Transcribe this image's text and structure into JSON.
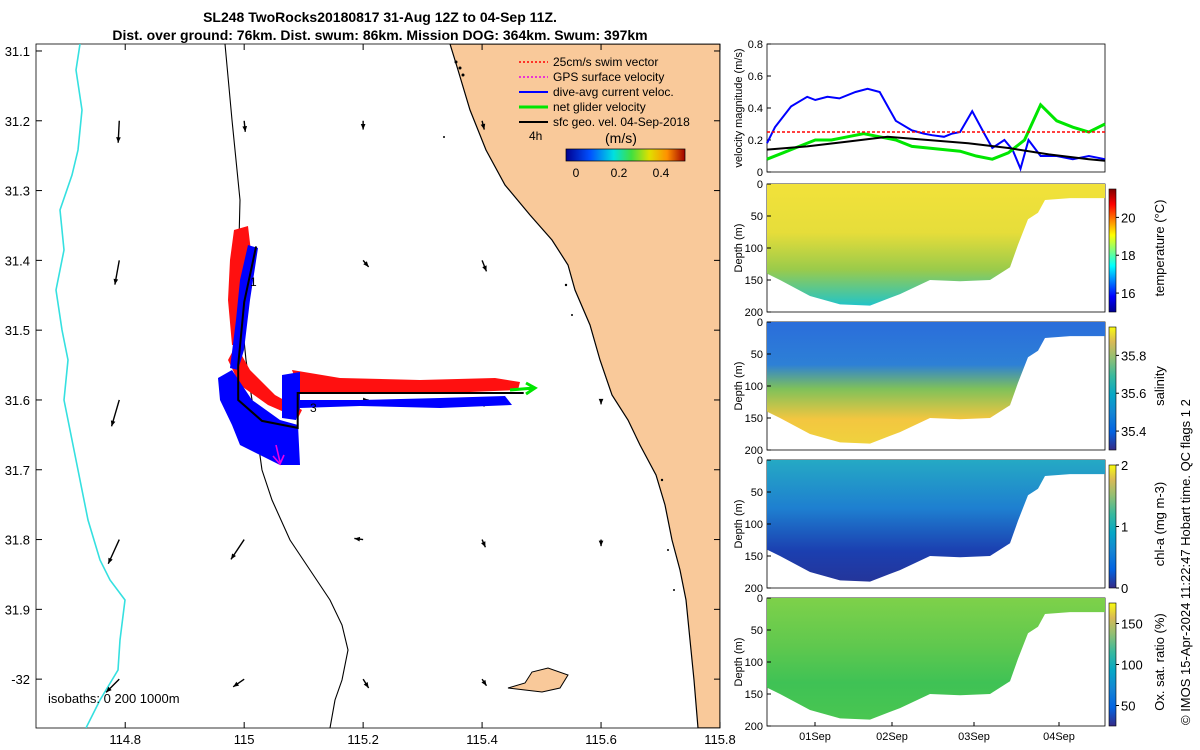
{
  "title": "SL248 TwoRocks20180817 31-Aug 12Z to 04-Sep 11Z.",
  "subtitle": "Dist. over ground: 76km. Dist. swum: 86km. Mission DOG: 364km. Swum: 397km",
  "credit": "© IMOS 15-Apr-2024 11:22:47 Hobart time. QC flags 1  2",
  "colors": {
    "land": "#F9C99A",
    "swim": "#FF0000",
    "gps": "#E800E8",
    "current": "#0000FF",
    "net": "#00E600",
    "geo": "#000000",
    "isobath200": "#000000",
    "isobath1000": "#35E0E0"
  },
  "chart_data": [
    {
      "id": "map",
      "type": "map",
      "x_ticks": [
        "114.8",
        "115",
        "115.2",
        "115.4",
        "115.6",
        "115.8"
      ],
      "y_ticks": [
        "31.1",
        "31.2",
        "31.3",
        "31.4",
        "31.5",
        "31.6",
        "31.7",
        "31.8",
        "31.9",
        "-32"
      ],
      "xlim": [
        114.65,
        115.8
      ],
      "ylim": [
        -31.09,
        -32.07
      ],
      "legend": [
        {
          "label": "25cm/s swim vector",
          "color": "swim",
          "style": "dotted"
        },
        {
          "label": "GPS surface velocity",
          "color": "gps",
          "style": "dotted"
        },
        {
          "label": "dive-avg current veloc.",
          "color": "current",
          "style": "solid"
        },
        {
          "label": "net glider velocity",
          "color": "net",
          "style": "solid"
        },
        {
          "label": "sfc geo. vel. 04-Sep-2018",
          "color": "geo",
          "style": "solid"
        }
      ],
      "time_marker_label": "4h",
      "colorbar": {
        "label": "(m/s)",
        "ticks": [
          "0",
          "0.2",
          "0.4"
        ],
        "range": [
          0,
          0.5
        ]
      },
      "track_markers": [
        {
          "label": "1",
          "lon": 115.03,
          "lat": -31.44
        },
        {
          "label": "3",
          "lon": 115.11,
          "lat": -31.62
        }
      ],
      "glider_track": [
        {
          "lon": 115.02,
          "lat": -31.38
        },
        {
          "lon": 115.0,
          "lat": -31.46
        },
        {
          "lon": 114.99,
          "lat": -31.55
        },
        {
          "lon": 114.99,
          "lat": -31.6
        },
        {
          "lon": 115.03,
          "lat": -31.63
        },
        {
          "lon": 115.09,
          "lat": -31.64
        },
        {
          "lon": 115.09,
          "lat": -31.59
        },
        {
          "lon": 115.2,
          "lat": -31.59
        },
        {
          "lon": 115.47,
          "lat": -31.59
        }
      ],
      "geo_vectors": [
        {
          "lon": 114.79,
          "lat": -31.2,
          "u": -0.01,
          "v": -0.2
        },
        {
          "lon": 115.0,
          "lat": -31.2,
          "u": 0.01,
          "v": -0.1
        },
        {
          "lon": 115.2,
          "lat": -31.2,
          "u": 0.0,
          "v": -0.08
        },
        {
          "lon": 115.4,
          "lat": -31.2,
          "u": 0.02,
          "v": -0.08
        },
        {
          "lon": 114.79,
          "lat": -31.4,
          "u": -0.04,
          "v": -0.22
        },
        {
          "lon": 115.2,
          "lat": -31.4,
          "u": 0.05,
          "v": -0.06
        },
        {
          "lon": 115.4,
          "lat": -31.4,
          "u": 0.04,
          "v": -0.1
        },
        {
          "lon": 114.79,
          "lat": -31.6,
          "u": -0.07,
          "v": -0.24
        },
        {
          "lon": 115.2,
          "lat": -31.6,
          "u": 0.05,
          "v": 0.0
        },
        {
          "lon": 115.4,
          "lat": -31.6,
          "u": 0.02,
          "v": -0.06
        },
        {
          "lon": 115.6,
          "lat": -31.6,
          "u": 0.0,
          "v": -0.04
        },
        {
          "lon": 114.79,
          "lat": -31.8,
          "u": -0.1,
          "v": -0.22
        },
        {
          "lon": 115.0,
          "lat": -31.8,
          "u": -0.12,
          "v": -0.18
        },
        {
          "lon": 115.2,
          "lat": -31.8,
          "u": -0.08,
          "v": 0.01
        },
        {
          "lon": 115.4,
          "lat": -31.8,
          "u": 0.03,
          "v": -0.07
        },
        {
          "lon": 115.6,
          "lat": -31.8,
          "u": 0.0,
          "v": -0.06
        },
        {
          "lon": 114.79,
          "lat": -32.0,
          "u": -0.12,
          "v": -0.12
        },
        {
          "lon": 115.0,
          "lat": -32.0,
          "u": -0.1,
          "v": -0.07
        },
        {
          "lon": 115.2,
          "lat": -32.0,
          "u": 0.05,
          "v": -0.08
        },
        {
          "lon": 115.4,
          "lat": -32.0,
          "u": 0.04,
          "v": -0.06
        }
      ],
      "isobaths_label": "isobaths: 0   200  1000m"
    },
    {
      "id": "velocity",
      "type": "line",
      "ylabel": "velocity magnitude (m/s)",
      "y_ticks": [
        "0",
        "0.2",
        "0.4",
        "0.6",
        "0.8"
      ],
      "ylim": [
        0,
        0.8
      ],
      "xlim": [
        0,
        4.2
      ],
      "series": [
        {
          "name": "dive-avg current",
          "color": "current",
          "x": [
            0,
            0.1,
            0.3,
            0.5,
            0.6,
            0.75,
            0.9,
            1.1,
            1.25,
            1.4,
            1.6,
            1.8,
            1.95,
            2.05,
            2.2,
            2.3,
            2.4,
            2.55,
            2.7,
            2.8,
            2.95,
            3.05,
            3.15,
            3.25,
            3.4,
            3.6,
            3.8,
            4.0,
            4.2
          ],
          "y": [
            0.18,
            0.28,
            0.41,
            0.47,
            0.45,
            0.47,
            0.46,
            0.5,
            0.52,
            0.5,
            0.32,
            0.26,
            0.24,
            0.23,
            0.22,
            0.24,
            0.25,
            0.38,
            0.24,
            0.15,
            0.2,
            0.14,
            0.02,
            0.2,
            0.1,
            0.1,
            0.08,
            0.1,
            0.08
          ]
        },
        {
          "name": "net glider velocity",
          "color": "net",
          "x": [
            0,
            0.2,
            0.4,
            0.6,
            0.8,
            1.0,
            1.2,
            1.4,
            1.6,
            1.8,
            2.0,
            2.2,
            2.4,
            2.6,
            2.8,
            3.0,
            3.2,
            3.4,
            3.6,
            3.8,
            4.0,
            4.2
          ],
          "y": [
            0.08,
            0.12,
            0.16,
            0.2,
            0.2,
            0.22,
            0.24,
            0.22,
            0.2,
            0.16,
            0.15,
            0.14,
            0.13,
            0.1,
            0.08,
            0.12,
            0.2,
            0.42,
            0.32,
            0.28,
            0.25,
            0.3
          ]
        },
        {
          "name": "swim speed",
          "color": "swim",
          "x": [
            0,
            4.2
          ],
          "y": [
            0.25,
            0.25
          ]
        },
        {
          "name": "sfc geo. vel.",
          "color": "geo",
          "x": [
            0,
            0.5,
            1.0,
            1.5,
            2.0,
            2.5,
            3.0,
            3.5,
            4.0,
            4.2
          ],
          "y": [
            0.14,
            0.16,
            0.19,
            0.22,
            0.2,
            0.18,
            0.15,
            0.11,
            0.08,
            0.07
          ]
        }
      ]
    },
    {
      "id": "temperature",
      "type": "heatmap",
      "ylabel": "Depth (m)",
      "clabel": "temperature (°C)",
      "y_ticks": [
        "0",
        "50",
        "100",
        "150",
        "200"
      ],
      "crange": [
        15,
        21.5
      ],
      "cticks": [
        "16",
        "18",
        "20"
      ],
      "cvals": [
        16,
        18,
        20
      ]
    },
    {
      "id": "salinity",
      "type": "heatmap",
      "ylabel": "Depth (m)",
      "clabel": "salinity",
      "y_ticks": [
        "0",
        "50",
        "100",
        "150",
        "200"
      ],
      "crange": [
        35.3,
        35.95
      ],
      "cticks": [
        "35.4",
        "35.6",
        "35.8"
      ],
      "cvals": [
        35.4,
        35.6,
        35.8
      ]
    },
    {
      "id": "chla",
      "type": "heatmap",
      "ylabel": "Depth (m)",
      "clabel": "chl-a (mg m-3)",
      "y_ticks": [
        "0",
        "50",
        "100",
        "150",
        "200"
      ],
      "crange": [
        0,
        2
      ],
      "cticks": [
        "0",
        "1",
        "2"
      ],
      "cvals": [
        0,
        1,
        2
      ]
    },
    {
      "id": "oxygen",
      "type": "heatmap",
      "ylabel": "Depth (m)",
      "clabel": "Ox. sat. ratio (%)",
      "y_ticks": [
        "0",
        "50",
        "100",
        "150",
        "200"
      ],
      "crange": [
        25,
        175
      ],
      "cticks": [
        "50",
        "100",
        "150"
      ],
      "cvals": [
        50,
        100,
        150
      ],
      "x_ticks": [
        "01Sep",
        "02Sep",
        "03Sep",
        "04Sep"
      ]
    }
  ]
}
